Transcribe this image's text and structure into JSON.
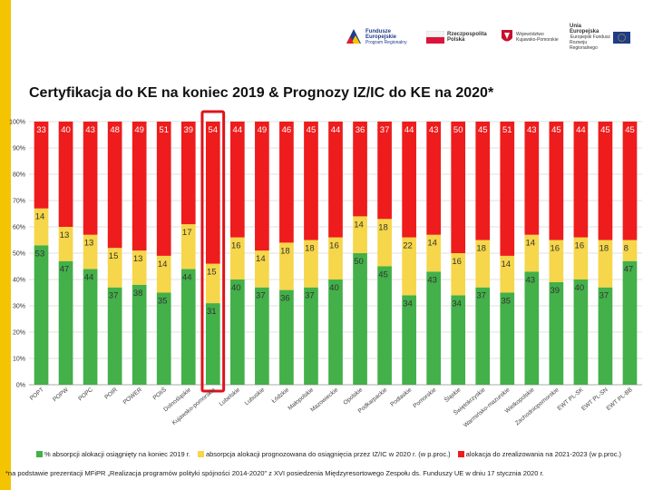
{
  "header": {
    "logos": [
      {
        "icon": "eu-funds-logo",
        "line1": "Fundusze",
        "line2": "Europejskie",
        "line3": "Program Regionalny"
      },
      {
        "icon": "poland-flag-logo",
        "line1": "Rzeczpospolita",
        "line2": "Polska"
      },
      {
        "icon": "voivodeship-logo",
        "line1": "Województwo",
        "line2": "Kujawsko-Pomorskie"
      },
      {
        "icon": "eu-flag-logo",
        "line1": "Unia Europejska",
        "line2": "Europejski Fundusz",
        "line3": "Rozwoju Regionalnego"
      }
    ]
  },
  "title": "Certyfikacja do KE na koniec 2019 & Prognozy IZ/IC do KE na 2020*",
  "chart_data": {
    "type": "bar",
    "stacked": true,
    "title": "Certyfikacja do KE na koniec 2019 & Prognozy IZ/IC do KE na 2020*",
    "categories": [
      "POPT",
      "POPW",
      "POPC",
      "POIR",
      "POWER",
      "POIiŚ",
      "Dolnośląskie",
      "Kujawsko-pomorskie",
      "Lubelskie",
      "Lubuskie",
      "Łódzkie",
      "Małopolskie",
      "Mazowieckie",
      "Opolskie",
      "Podkarpackie",
      "Podlaskie",
      "Pomorskie",
      "Śląskie",
      "Świętokrzyskie",
      "Warmińsko-mazurskie",
      "Wielkopolskie",
      "Zachodniopomorskie",
      "EWT PL-SK",
      "EWT PL-SN",
      "EWT PL-BB"
    ],
    "series": [
      {
        "name": "% absorpcji alokacji osiągnięty na koniec 2019 r.",
        "color": "#43b049",
        "values": [
          53,
          47,
          44,
          37,
          38,
          35,
          44,
          31,
          40,
          37,
          36,
          37,
          40,
          50,
          45,
          34,
          43,
          34,
          37,
          35,
          43,
          39,
          40,
          37,
          47
        ]
      },
      {
        "name": "absorpcja alokacji prognozowana do osiągnięcia przez IZ/IC w 2020 r. (w p.proc.)",
        "color": "#f6d64a",
        "values": [
          14,
          13,
          13,
          15,
          13,
          14,
          17,
          15,
          16,
          14,
          18,
          18,
          16,
          14,
          18,
          22,
          14,
          16,
          18,
          14,
          14,
          16,
          16,
          18,
          8
        ]
      },
      {
        "name": "alokacja do zrealizowania na 2021-2023 (w p.proc.)",
        "color": "#ee1c1c",
        "values": [
          33,
          40,
          43,
          48,
          49,
          51,
          39,
          54,
          44,
          49,
          46,
          45,
          44,
          36,
          37,
          44,
          43,
          50,
          45,
          51,
          43,
          45,
          44,
          45,
          45
        ]
      }
    ],
    "highlight_category": "Kujawsko-pomorskie",
    "y_ticks": [
      "0%",
      "10%",
      "20%",
      "30%",
      "40%",
      "50%",
      "60%",
      "70%",
      "80%",
      "90%",
      "100%"
    ],
    "ylim": [
      0,
      100
    ],
    "grid": true,
    "legend_position": "bottom"
  },
  "footnote": "*na podstawie prezentacji MFiPR „Realizacja programów polityki spójności 2014-2020” z XVI posiedzenia Międzyresortowego Zespołu ds. Funduszy UE w dniu 17 stycznia 2020 r."
}
